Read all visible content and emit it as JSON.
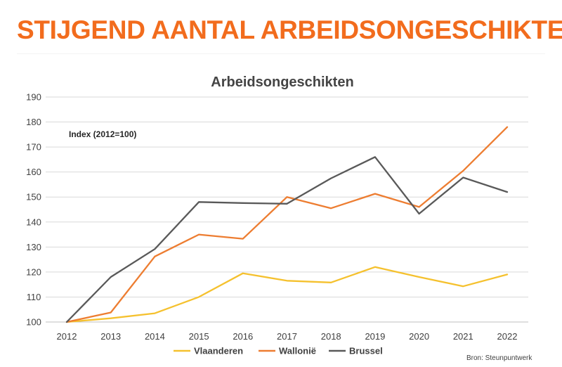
{
  "header": {
    "title": "STIJGEND AANTAL ARBEIDSONGESCHIKTEN"
  },
  "colors": {
    "accent": "#f26c1d",
    "vlaanderen": "#f5c12e",
    "wallonie": "#ed7d31",
    "brussel": "#595959"
  },
  "chart_data": {
    "type": "line",
    "title": "Arbeidsongeschikten",
    "annotation": "Index (2012=100)",
    "categories": [
      "2012",
      "2013",
      "2014",
      "2015",
      "2016",
      "2017",
      "2018",
      "2019",
      "2020",
      "2021",
      "2022"
    ],
    "series": [
      {
        "name": "Vlaanderen",
        "color": "#f5c12e",
        "values": [
          100,
          101.5,
          103.5,
          110,
          119.5,
          116.5,
          115.8,
          122,
          118,
          114.3,
          119
        ]
      },
      {
        "name": "Wallonië",
        "color": "#ed7d31",
        "values": [
          100,
          103.8,
          126.2,
          135,
          133.3,
          150,
          145.5,
          151.3,
          146,
          160.5,
          178
        ]
      },
      {
        "name": "Brussel",
        "color": "#595959",
        "values": [
          100,
          118,
          129.2,
          148,
          147.6,
          147.3,
          157.5,
          166,
          143.3,
          157.8,
          152
        ]
      }
    ],
    "ylim": [
      100,
      190
    ],
    "yticks": [
      "100",
      "110",
      "120",
      "130",
      "140",
      "150",
      "160",
      "170",
      "180",
      "190"
    ],
    "grid": true,
    "legend_position": "bottom",
    "source": "Bron: Steunpuntwerk"
  }
}
